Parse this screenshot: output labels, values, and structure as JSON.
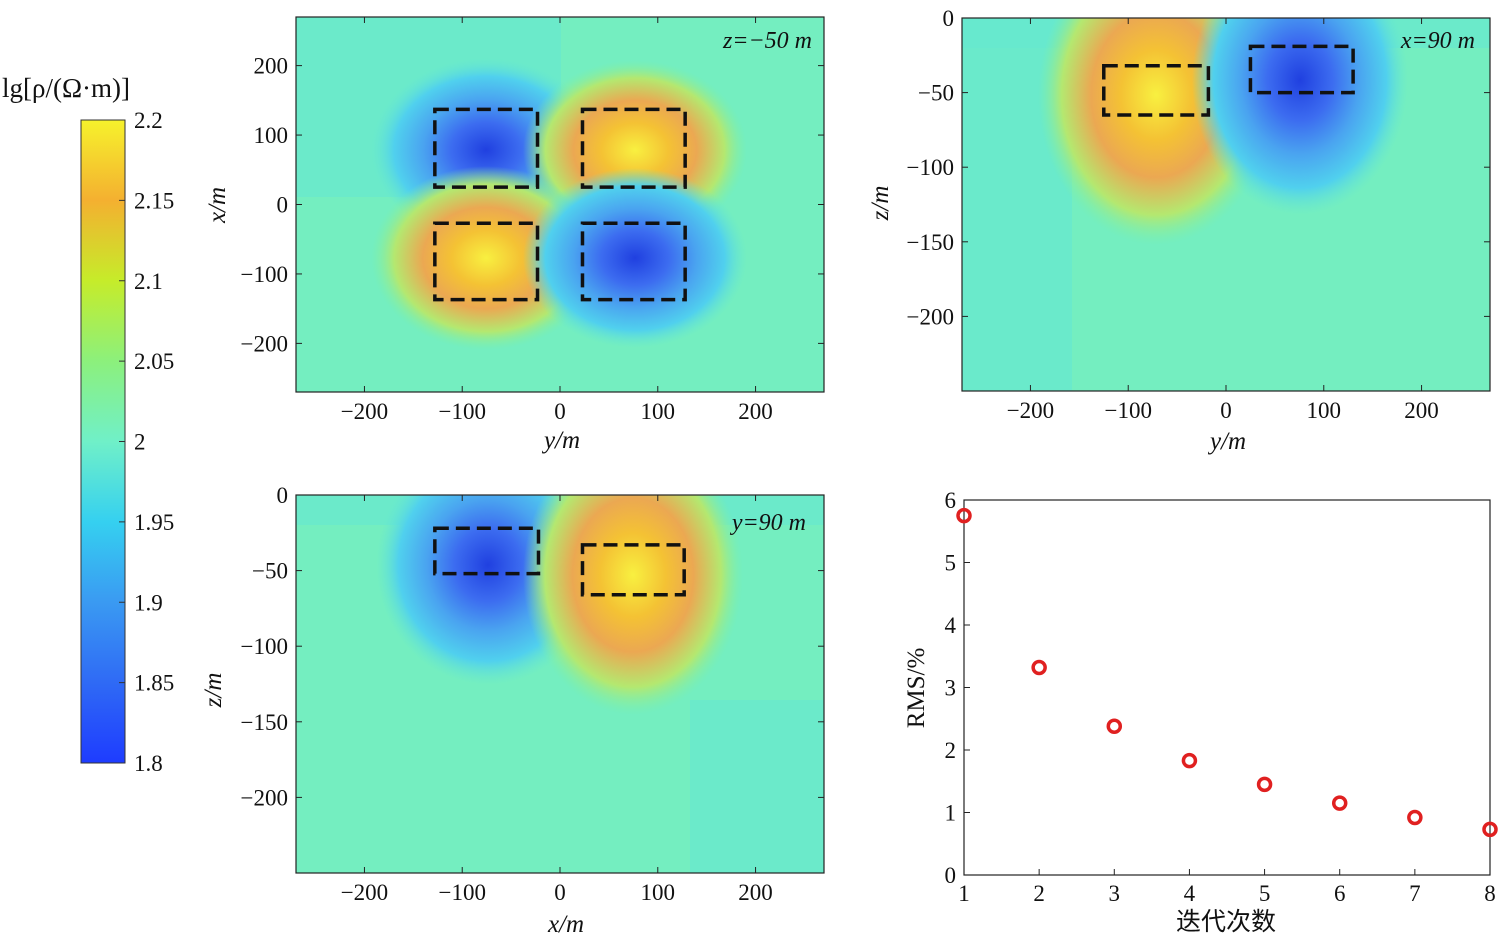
{
  "colorbar": {
    "label": "lg[ρ/(Ω·m)]",
    "ticks": [
      "2.2",
      "2.15",
      "2.1",
      "2.05",
      "2",
      "1.95",
      "1.9",
      "1.85",
      "1.8"
    ],
    "min": 1.8,
    "max": 2.2
  },
  "panels": {
    "z_slice": {
      "title": "z=−50 m",
      "xlabel": "y/m",
      "ylabel": "x/m",
      "xticks": [
        "−200",
        "−100",
        "0",
        "100",
        "200"
      ],
      "yticks": [
        "200",
        "100",
        "0",
        "−100",
        "−200"
      ]
    },
    "x_slice": {
      "title": "x=90 m",
      "xlabel": "y/m",
      "ylabel": "z/m",
      "xticks": [
        "−200",
        "−100",
        "0",
        "100",
        "200"
      ],
      "yticks": [
        "0",
        "−50",
        "−100",
        "−150",
        "−200"
      ]
    },
    "y_slice": {
      "title": "y=90 m",
      "xlabel": "x/m",
      "ylabel": "z/m",
      "xticks": [
        "−200",
        "−100",
        "0",
        "100",
        "200"
      ],
      "yticks": [
        "0",
        "−50",
        "−100",
        "−150",
        "−200"
      ]
    },
    "rms": {
      "xlabel": "迭代次数",
      "ylabel": "RMS/%",
      "xticks": [
        "1",
        "2",
        "3",
        "4",
        "5",
        "6",
        "7",
        "8"
      ],
      "yticks": [
        "0",
        "1",
        "2",
        "3",
        "4",
        "5",
        "6"
      ]
    }
  },
  "chart_data": [
    {
      "type": "heatmap",
      "title": "z=−50 m",
      "xlabel": "y/m",
      "ylabel": "x/m",
      "xlim": [
        -270,
        270
      ],
      "ylim": [
        -270,
        270
      ],
      "background": 2.0,
      "anomalies": [
        {
          "center": [
            -75,
            75
          ],
          "value": 1.81
        },
        {
          "center": [
            72,
            72
          ],
          "value": 2.19
        },
        {
          "center": [
            -75,
            -72
          ],
          "value": 2.19
        },
        {
          "center": [
            72,
            -72
          ],
          "value": 1.81
        }
      ],
      "boxes": [
        {
          "y": [
            -128,
            -23
          ],
          "x": [
            25,
            137
          ]
        },
        {
          "y": [
            23,
            128
          ],
          "x": [
            25,
            137
          ]
        },
        {
          "y": [
            -128,
            -23
          ],
          "x": [
            -137,
            -27
          ]
        },
        {
          "y": [
            23,
            128
          ],
          "x": [
            -137,
            -27
          ]
        }
      ]
    },
    {
      "type": "heatmap",
      "title": "x=90 m",
      "xlabel": "y/m",
      "ylabel": "z/m",
      "xlim": [
        -270,
        270
      ],
      "ylim": [
        -250,
        0
      ],
      "background": 2.0,
      "anomalies": [
        {
          "center": [
            -70,
            -40
          ],
          "value": 2.18
        },
        {
          "center": [
            72,
            -35
          ],
          "value": 1.82
        }
      ],
      "boxes": [
        {
          "y": [
            -125,
            -18
          ],
          "z": [
            -65,
            -32
          ]
        },
        {
          "y": [
            25,
            130
          ],
          "z": [
            -50,
            -19
          ]
        }
      ]
    },
    {
      "type": "heatmap",
      "title": "y=90 m",
      "xlabel": "x/m",
      "ylabel": "z/m",
      "xlim": [
        -270,
        270
      ],
      "ylim": [
        -250,
        0
      ],
      "background": 2.0,
      "anomalies": [
        {
          "center": [
            -70,
            -35
          ],
          "value": 1.82
        },
        {
          "center": [
            70,
            -42
          ],
          "value": 2.18
        }
      ],
      "boxes": [
        {
          "x": [
            -128,
            -22
          ],
          "z": [
            -52,
            -22
          ]
        },
        {
          "x": [
            23,
            127
          ],
          "z": [
            -66,
            -33
          ]
        }
      ]
    },
    {
      "type": "scatter",
      "xlabel": "迭代次数",
      "ylabel": "RMS/%",
      "xlim": [
        1,
        8
      ],
      "ylim": [
        0,
        6
      ],
      "x": [
        1,
        2,
        3,
        4,
        5,
        6,
        7,
        8
      ],
      "y": [
        5.75,
        3.32,
        2.38,
        1.83,
        1.45,
        1.15,
        0.92,
        0.73
      ],
      "marker_color": "#e02020"
    }
  ]
}
